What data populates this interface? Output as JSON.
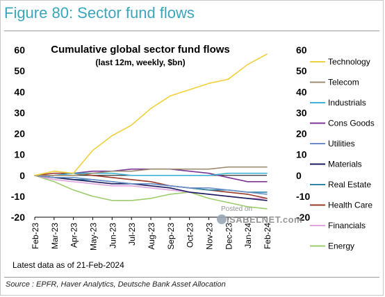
{
  "figure_title": "Figure 80: Sector fund flows",
  "source": "Source : EPFR, Haver Analytics, Deutsche Bank Asset Allocation",
  "watermark": {
    "posted": "Posted on",
    "site": "ISABELNET.com"
  },
  "chart_data": {
    "type": "line",
    "title": "Cumulative global sector fund flows",
    "subtitle": "(last 12m, weekly, $bn)",
    "note": "Latest data as of 21-Feb-2024",
    "ylim": [
      -20,
      60
    ],
    "yticks": [
      -20,
      -10,
      0,
      10,
      20,
      30,
      40,
      50,
      60
    ],
    "ytick_labels_left": [
      "-20",
      "-10",
      "0",
      "10",
      "20",
      "30",
      "40",
      "50",
      "60"
    ],
    "ytick_labels_right": [
      "-20",
      "-10",
      "0",
      "10",
      "20",
      "30",
      "40",
      "50",
      "60"
    ],
    "grid": false,
    "legend_position": "right",
    "categories": [
      "Feb-23",
      "Mar-23",
      "Apr-23",
      "May-23",
      "Jun-23",
      "Jul-23",
      "Aug-23",
      "Sep-23",
      "Oct-23",
      "Nov-23",
      "Dec-23",
      "Jan-24",
      "Feb-24"
    ],
    "series": [
      {
        "name": "Technology",
        "color": "#f2cf3d",
        "values": [
          0,
          2,
          1,
          12,
          19,
          24,
          32,
          38,
          41,
          44,
          46,
          53,
          58
        ]
      },
      {
        "name": "Telecom",
        "color": "#9c8c72",
        "values": [
          0,
          0,
          0,
          1,
          2,
          2,
          3,
          3,
          3,
          3,
          4,
          4,
          4
        ]
      },
      {
        "name": "Industrials",
        "color": "#3cb3d6",
        "values": [
          0,
          0,
          1,
          1,
          1,
          0,
          0,
          0,
          0,
          0,
          1,
          1,
          1
        ]
      },
      {
        "name": "Cons Goods",
        "color": "#7a3596",
        "values": [
          0,
          0,
          1,
          2,
          2,
          3,
          3,
          3,
          2,
          1,
          -1,
          -3,
          -3
        ]
      },
      {
        "name": "Utilities",
        "color": "#6c8fc8",
        "values": [
          0,
          -1,
          -1,
          -2,
          -3,
          -4,
          -4,
          -5,
          -6,
          -6,
          -7,
          -8,
          -9
        ]
      },
      {
        "name": "Materials",
        "color": "#1a1a5e",
        "values": [
          0,
          -1,
          -2,
          -3,
          -4,
          -4,
          -5,
          -6,
          -8,
          -9,
          -10,
          -11,
          -12
        ]
      },
      {
        "name": "Real Estate",
        "color": "#2e86a6",
        "values": [
          0,
          -1,
          -2,
          -2,
          -3,
          -4,
          -4,
          -5,
          -6,
          -7,
          -7,
          -8,
          -8
        ]
      },
      {
        "name": "Health Care",
        "color": "#9b3b2a",
        "values": [
          0,
          1,
          1,
          0,
          -1,
          -2,
          -3,
          -5,
          -6,
          -7,
          -8,
          -9,
          -11
        ]
      },
      {
        "name": "Financials",
        "color": "#e2a2de",
        "values": [
          0,
          -2,
          -3,
          -4,
          -5,
          -5,
          -6,
          -7,
          -8,
          -9,
          -10,
          -11,
          -11
        ]
      },
      {
        "name": "Energy",
        "color": "#9ccc6b",
        "values": [
          0,
          -3,
          -7,
          -10,
          -12,
          -12,
          -11,
          -9,
          -8,
          -11,
          -13,
          -15,
          -16
        ]
      }
    ]
  }
}
